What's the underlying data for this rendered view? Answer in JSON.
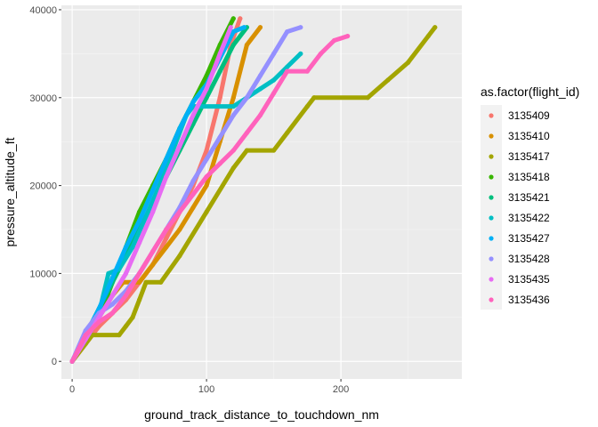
{
  "chart_data": {
    "type": "scatter",
    "xlabel": "ground_track_distance_to_touchdown_nm",
    "ylabel": "pressure_altitude_ft",
    "xlim": [
      -8,
      290
    ],
    "ylim": [
      -2000,
      40500
    ],
    "x_ticks": [
      0,
      100,
      200
    ],
    "x_tick_labels": [
      "0",
      "100",
      "200"
    ],
    "y_ticks": [
      0,
      10000,
      20000,
      30000,
      40000
    ],
    "y_tick_labels": [
      "0",
      "10000",
      "20000",
      "30000",
      "40000"
    ],
    "grid": true,
    "legend": {
      "title": "as.factor(flight_id)",
      "placement": "right"
    },
    "series": [
      {
        "name": "3135409",
        "color": "#F8766D",
        "points": [
          [
            0,
            0
          ],
          [
            10,
            2000
          ],
          [
            20,
            4000
          ],
          [
            30,
            5500
          ],
          [
            40,
            7000
          ],
          [
            50,
            9000
          ],
          [
            60,
            11000
          ],
          [
            70,
            14000
          ],
          [
            80,
            17000
          ],
          [
            90,
            20000
          ],
          [
            100,
            24000
          ],
          [
            110,
            30000
          ],
          [
            118,
            36000
          ],
          [
            125,
            39000
          ]
        ]
      },
      {
        "name": "3135410",
        "color": "#D89000",
        "points": [
          [
            0,
            0
          ],
          [
            10,
            2500
          ],
          [
            20,
            5000
          ],
          [
            30,
            7500
          ],
          [
            38,
            9000
          ],
          [
            50,
            9000
          ],
          [
            60,
            11000
          ],
          [
            70,
            13000
          ],
          [
            80,
            15000
          ],
          [
            90,
            17500
          ],
          [
            100,
            20000
          ],
          [
            110,
            25000
          ],
          [
            120,
            30000
          ],
          [
            130,
            36000
          ],
          [
            140,
            38000
          ]
        ]
      },
      {
        "name": "3135417",
        "color": "#A3A500",
        "points": [
          [
            0,
            0
          ],
          [
            10,
            2000
          ],
          [
            15,
            3000
          ],
          [
            35,
            3000
          ],
          [
            40,
            4000
          ],
          [
            45,
            5000
          ],
          [
            50,
            7000
          ],
          [
            55,
            9000
          ],
          [
            66,
            9000
          ],
          [
            80,
            12000
          ],
          [
            100,
            17000
          ],
          [
            120,
            22000
          ],
          [
            130,
            24000
          ],
          [
            150,
            24000
          ],
          [
            160,
            26000
          ],
          [
            175,
            29000
          ],
          [
            180,
            30000
          ],
          [
            220,
            30000
          ],
          [
            235,
            32000
          ],
          [
            250,
            34000
          ],
          [
            265,
            37000
          ],
          [
            270,
            38000
          ]
        ]
      },
      {
        "name": "3135418",
        "color": "#39B600",
        "points": [
          [
            0,
            0
          ],
          [
            10,
            2500
          ],
          [
            20,
            5000
          ],
          [
            30,
            9000
          ],
          [
            40,
            13000
          ],
          [
            50,
            17000
          ],
          [
            60,
            20000
          ],
          [
            70,
            23000
          ],
          [
            80,
            26500
          ],
          [
            90,
            29500
          ],
          [
            100,
            32500
          ],
          [
            110,
            36000
          ],
          [
            120,
            39000
          ]
        ]
      },
      {
        "name": "3135421",
        "color": "#00BF7D",
        "points": [
          [
            0,
            0
          ],
          [
            10,
            3000
          ],
          [
            20,
            6000
          ],
          [
            30,
            9000
          ],
          [
            40,
            12000
          ],
          [
            50,
            15000
          ],
          [
            60,
            18000
          ],
          [
            70,
            21000
          ],
          [
            80,
            24000
          ],
          [
            90,
            27000
          ],
          [
            100,
            30000
          ],
          [
            110,
            33000
          ],
          [
            120,
            36000
          ],
          [
            130,
            38000
          ]
        ]
      },
      {
        "name": "3135422",
        "color": "#00BFC4",
        "points": [
          [
            0,
            0
          ],
          [
            10,
            3000
          ],
          [
            20,
            5500
          ],
          [
            27,
            10000
          ],
          [
            35,
            10500
          ],
          [
            45,
            13000
          ],
          [
            55,
            16500
          ],
          [
            65,
            20000
          ],
          [
            75,
            24000
          ],
          [
            85,
            28000
          ],
          [
            90,
            29000
          ],
          [
            120,
            29000
          ],
          [
            130,
            30000
          ],
          [
            140,
            31000
          ],
          [
            150,
            32000
          ],
          [
            160,
            33500
          ],
          [
            170,
            35000
          ]
        ]
      },
      {
        "name": "3135427",
        "color": "#00B0F6",
        "points": [
          [
            0,
            0
          ],
          [
            10,
            3000
          ],
          [
            20,
            6000
          ],
          [
            30,
            9500
          ],
          [
            40,
            13000
          ],
          [
            50,
            16000
          ],
          [
            60,
            19500
          ],
          [
            70,
            23000
          ],
          [
            80,
            26500
          ],
          [
            90,
            29500
          ],
          [
            100,
            31500
          ],
          [
            110,
            34500
          ],
          [
            120,
            37500
          ],
          [
            128,
            38000
          ]
        ]
      },
      {
        "name": "3135428",
        "color": "#9590FF",
        "points": [
          [
            0,
            0
          ],
          [
            10,
            3500
          ],
          [
            20,
            5500
          ],
          [
            30,
            6500
          ],
          [
            40,
            8000
          ],
          [
            50,
            10000
          ],
          [
            60,
            12500
          ],
          [
            70,
            15000
          ],
          [
            80,
            17500
          ],
          [
            90,
            20500
          ],
          [
            100,
            23000
          ],
          [
            110,
            25500
          ],
          [
            120,
            28000
          ],
          [
            130,
            30000
          ],
          [
            140,
            32500
          ],
          [
            150,
            35000
          ],
          [
            160,
            37500
          ],
          [
            170,
            38000
          ]
        ]
      },
      {
        "name": "3135435",
        "color": "#E76BF3",
        "points": [
          [
            0,
            0
          ],
          [
            10,
            2500
          ],
          [
            20,
            5000
          ],
          [
            30,
            7500
          ],
          [
            40,
            10000
          ],
          [
            50,
            13500
          ],
          [
            60,
            17000
          ],
          [
            70,
            21000
          ],
          [
            80,
            24500
          ],
          [
            90,
            28000
          ],
          [
            100,
            31000
          ],
          [
            110,
            35000
          ],
          [
            118,
            38000
          ]
        ]
      },
      {
        "name": "3135436",
        "color": "#FF62BC",
        "points": [
          [
            0,
            0
          ],
          [
            10,
            3000
          ],
          [
            20,
            4500
          ],
          [
            30,
            5500
          ],
          [
            40,
            7500
          ],
          [
            50,
            10000
          ],
          [
            60,
            12500
          ],
          [
            70,
            15000
          ],
          [
            80,
            17000
          ],
          [
            90,
            19000
          ],
          [
            100,
            21000
          ],
          [
            110,
            22500
          ],
          [
            120,
            24000
          ],
          [
            130,
            26000
          ],
          [
            140,
            28000
          ],
          [
            150,
            30500
          ],
          [
            160,
            33000
          ],
          [
            175,
            33000
          ],
          [
            185,
            35000
          ],
          [
            195,
            36500
          ],
          [
            205,
            37000
          ]
        ]
      }
    ]
  }
}
